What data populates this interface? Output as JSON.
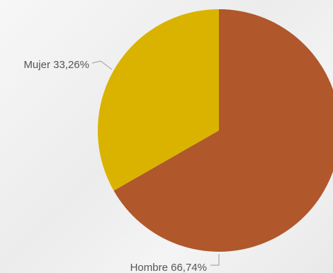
{
  "chart_data": {
    "type": "pie",
    "slices": [
      {
        "label": "Hombre",
        "value": 66.74,
        "display": "Hombre 66,74%",
        "color": "#b0572c"
      },
      {
        "label": "Mujer",
        "value": 33.26,
        "display": "Mujer 33,26%",
        "color": "#d9b300"
      }
    ],
    "start_angle_deg": 0,
    "direction": "clockwise",
    "legend": "none",
    "labels": "outside-with-leader-lines"
  }
}
